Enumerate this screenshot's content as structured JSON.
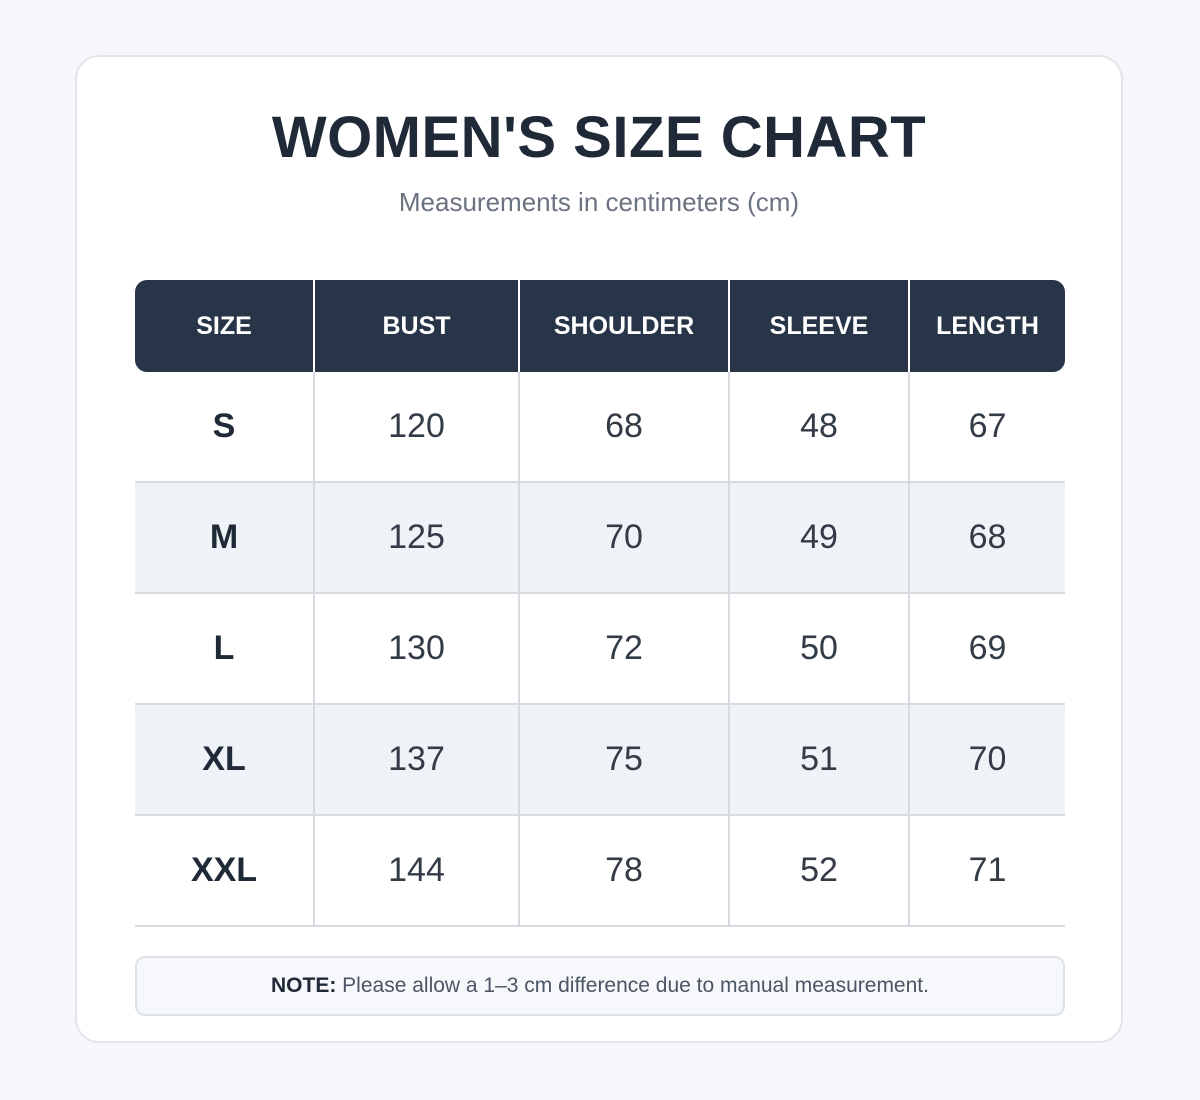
{
  "title": "WOMEN'S SIZE CHART",
  "subtitle": "Measurements in centimeters (cm)",
  "note": {
    "label": "NOTE:",
    "text": " Please allow a 1–3 cm difference due to manual measurement."
  },
  "colors": {
    "header_bg": "#283549",
    "header_text": "#ffffff",
    "alt_row_bg": "#eff3f8",
    "title_text": "#1f2937"
  },
  "chart_data": {
    "type": "table",
    "title": "WOMEN'S SIZE CHART",
    "subtitle": "Measurements in centimeters (cm)",
    "columns": [
      "SIZE",
      "BUST",
      "SHOULDER",
      "SLEEVE",
      "LENGTH"
    ],
    "rows": [
      [
        "S",
        "120",
        "68",
        "48",
        "67"
      ],
      [
        "M",
        "125",
        "70",
        "49",
        "68"
      ],
      [
        "L",
        "130",
        "72",
        "50",
        "69"
      ],
      [
        "XL",
        "137",
        "75",
        "51",
        "70"
      ],
      [
        "XXL",
        "144",
        "78",
        "52",
        "71"
      ]
    ]
  }
}
